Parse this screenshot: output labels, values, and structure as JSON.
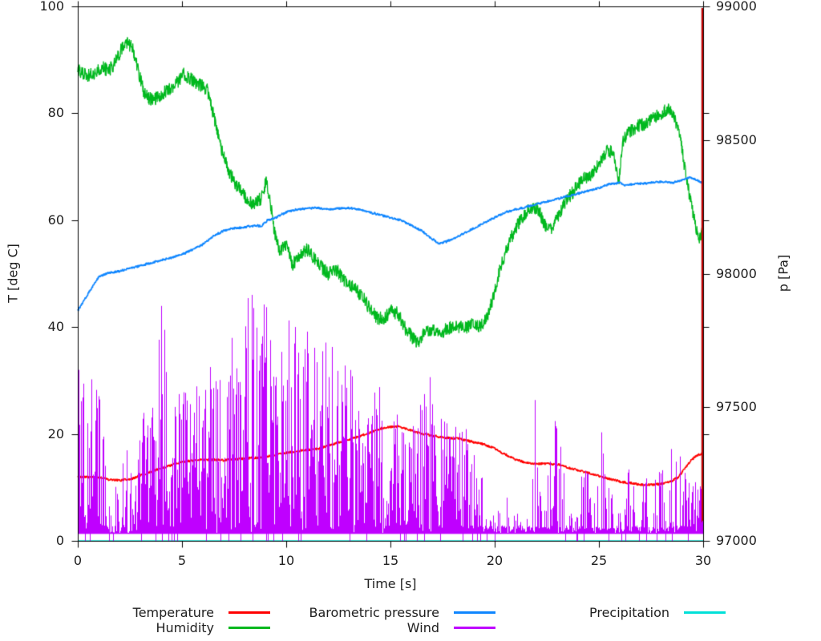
{
  "chart_data": {
    "type": "line",
    "title": "",
    "xlabel": "Time [s]",
    "ylabel": "T [deg C]",
    "y2label": "p [Pa]",
    "xlim": [
      0,
      30
    ],
    "ylim": [
      0,
      100
    ],
    "y2lim": [
      97000,
      99000
    ],
    "xticks": [
      0,
      5,
      10,
      15,
      20,
      25,
      30
    ],
    "yticks": [
      0,
      20,
      40,
      60,
      80,
      100
    ],
    "y2ticks": [
      97000,
      97500,
      98000,
      98500,
      99000
    ],
    "grid": false,
    "legend_position": "bottom",
    "axis_color": "#000000",
    "text_color": "#202020",
    "series": [
      {
        "name": "Temperature",
        "color": "#ff0000",
        "axis": "y1",
        "style": "line",
        "noise": 0.25,
        "width": 1.5,
        "points": [
          [
            0,
            12
          ],
          [
            1.3,
            11.8
          ],
          [
            1.5,
            11.4
          ],
          [
            2.0,
            11.3
          ],
          [
            2.6,
            11.6
          ],
          [
            3.2,
            12.5
          ],
          [
            4,
            13.6
          ],
          [
            5,
            14.8
          ],
          [
            6,
            15.2
          ],
          [
            7,
            15.1
          ],
          [
            8,
            15.4
          ],
          [
            9,
            15.7
          ],
          [
            9.7,
            16.3
          ],
          [
            10.5,
            16.8
          ],
          [
            11.5,
            17.2
          ],
          [
            12.5,
            18.4
          ],
          [
            13.5,
            19.5
          ],
          [
            14.1,
            20.4
          ],
          [
            14.7,
            21.2
          ],
          [
            15.3,
            21.4
          ],
          [
            15.9,
            20.8
          ],
          [
            16.4,
            20.1
          ],
          [
            17,
            19.7
          ],
          [
            17.6,
            19.3
          ],
          [
            18.3,
            19.1
          ],
          [
            19,
            18.5
          ],
          [
            19.6,
            17.9
          ],
          [
            20,
            17.3
          ],
          [
            20.4,
            16.4
          ],
          [
            21,
            15.2
          ],
          [
            21.5,
            14.6
          ],
          [
            22,
            14.4
          ],
          [
            22.6,
            14.5
          ],
          [
            23.2,
            14.2
          ],
          [
            23.6,
            13.6
          ],
          [
            24,
            13.2
          ],
          [
            24.6,
            12.6
          ],
          [
            25,
            12.1
          ],
          [
            25.6,
            11.5
          ],
          [
            26.1,
            11.0
          ],
          [
            26.6,
            10.8
          ],
          [
            27,
            10.5
          ],
          [
            27.6,
            10.5
          ],
          [
            28,
            10.7
          ],
          [
            28.4,
            11.0
          ],
          [
            28.8,
            11.9
          ],
          [
            29.1,
            13.4
          ],
          [
            29.4,
            15.0
          ],
          [
            29.7,
            16.0
          ],
          [
            30,
            16.4
          ]
        ]
      },
      {
        "name": "Humidity",
        "color": "#00b81e",
        "axis": "y1",
        "style": "line",
        "noise": 1.3,
        "width": 1.3,
        "points": [
          [
            0,
            88
          ],
          [
            0.4,
            87
          ],
          [
            0.8,
            87.5
          ],
          [
            1.2,
            88.5
          ],
          [
            1.5,
            88
          ],
          [
            1.8,
            89.5
          ],
          [
            2.1,
            92
          ],
          [
            2.35,
            93.2
          ],
          [
            2.6,
            92.5
          ],
          [
            2.9,
            88
          ],
          [
            3.2,
            83.5
          ],
          [
            3.6,
            82.3
          ],
          [
            4.0,
            83.5
          ],
          [
            4.4,
            84.5
          ],
          [
            4.8,
            86
          ],
          [
            5.1,
            87.3
          ],
          [
            5.4,
            86.5
          ],
          [
            5.8,
            85.5
          ],
          [
            6.2,
            84.5
          ],
          [
            6.5,
            80
          ],
          [
            6.9,
            73
          ],
          [
            7.2,
            69.5
          ],
          [
            7.6,
            66.5
          ],
          [
            8.0,
            64.5
          ],
          [
            8.4,
            63
          ],
          [
            8.8,
            64
          ],
          [
            9.05,
            67.5
          ],
          [
            9.25,
            63
          ],
          [
            9.45,
            57.5
          ],
          [
            9.7,
            54
          ],
          [
            10,
            55.5
          ],
          [
            10.3,
            51.5
          ],
          [
            10.6,
            53.5
          ],
          [
            11,
            54.5
          ],
          [
            11.5,
            52
          ],
          [
            12,
            50
          ],
          [
            12.4,
            50.8
          ],
          [
            12.8,
            48.5
          ],
          [
            13.2,
            47.5
          ],
          [
            13.6,
            46
          ],
          [
            14,
            43.5
          ],
          [
            14.35,
            41.8
          ],
          [
            14.7,
            41.5
          ],
          [
            15,
            43
          ],
          [
            15.35,
            42.6
          ],
          [
            15.7,
            39.8
          ],
          [
            16,
            38.3
          ],
          [
            16.3,
            36.8
          ],
          [
            16.6,
            38.8
          ],
          [
            17,
            39.6
          ],
          [
            17.4,
            39
          ],
          [
            17.8,
            39.8
          ],
          [
            18.2,
            40.2
          ],
          [
            18.6,
            39.8
          ],
          [
            19,
            40.6
          ],
          [
            19.3,
            40
          ],
          [
            19.6,
            41.5
          ],
          [
            19.9,
            45
          ],
          [
            20.2,
            50
          ],
          [
            20.6,
            55
          ],
          [
            21,
            58.5
          ],
          [
            21.4,
            61
          ],
          [
            21.8,
            62.5
          ],
          [
            22.1,
            62
          ],
          [
            22.4,
            59
          ],
          [
            22.7,
            58.2
          ],
          [
            23,
            60.5
          ],
          [
            23.4,
            63.5
          ],
          [
            23.8,
            65.5
          ],
          [
            24.2,
            67.5
          ],
          [
            24.6,
            68.5
          ],
          [
            25,
            70.5
          ],
          [
            25.4,
            73
          ],
          [
            25.7,
            72.5
          ],
          [
            25.95,
            67
          ],
          [
            26.15,
            74.5
          ],
          [
            26.4,
            76.5
          ],
          [
            26.8,
            77.5
          ],
          [
            27.2,
            78
          ],
          [
            27.6,
            79
          ],
          [
            28,
            80
          ],
          [
            28.3,
            80.8
          ],
          [
            28.6,
            79.5
          ],
          [
            28.9,
            75.5
          ],
          [
            29.2,
            67.5
          ],
          [
            29.5,
            61.5
          ],
          [
            29.8,
            55.8
          ],
          [
            30,
            58.5
          ]
        ]
      },
      {
        "name": "Barometric pressure",
        "color": "#0f86ff",
        "axis": "y2",
        "style": "line",
        "noise": 4.5,
        "width": 1.7,
        "points": [
          [
            0,
            97860
          ],
          [
            0.3,
            97900
          ],
          [
            0.7,
            97950
          ],
          [
            1.0,
            97988
          ],
          [
            1.4,
            98000
          ],
          [
            2,
            98010
          ],
          [
            2.5,
            98020
          ],
          [
            3,
            98030
          ],
          [
            3.5,
            98040
          ],
          [
            4,
            98050
          ],
          [
            4.5,
            98060
          ],
          [
            5,
            98072
          ],
          [
            5.5,
            98090
          ],
          [
            6,
            98110
          ],
          [
            6.5,
            98140
          ],
          [
            7,
            98160
          ],
          [
            7.5,
            98170
          ],
          [
            8,
            98174
          ],
          [
            8.5,
            98180
          ],
          [
            8.8,
            98178
          ],
          [
            9.1,
            98200
          ],
          [
            9.5,
            98210
          ],
          [
            10,
            98230
          ],
          [
            10.5,
            98240
          ],
          [
            11,
            98244
          ],
          [
            11.5,
            98246
          ],
          [
            12,
            98240
          ],
          [
            12.5,
            98244
          ],
          [
            13,
            98246
          ],
          [
            13.5,
            98240
          ],
          [
            14,
            98230
          ],
          [
            14.5,
            98220
          ],
          [
            15,
            98210
          ],
          [
            15.5,
            98200
          ],
          [
            16,
            98180
          ],
          [
            16.5,
            98160
          ],
          [
            17,
            98130
          ],
          [
            17.35,
            98112
          ],
          [
            17.7,
            98120
          ],
          [
            18,
            98130
          ],
          [
            18.5,
            98150
          ],
          [
            19,
            98170
          ],
          [
            19.5,
            98190
          ],
          [
            20,
            98210
          ],
          [
            20.5,
            98230
          ],
          [
            21,
            98240
          ],
          [
            21.5,
            98250
          ],
          [
            22,
            98260
          ],
          [
            22.5,
            98270
          ],
          [
            23,
            98280
          ],
          [
            23.5,
            98290
          ],
          [
            24,
            98300
          ],
          [
            24.5,
            98310
          ],
          [
            25,
            98320
          ],
          [
            25.5,
            98335
          ],
          [
            26,
            98340
          ],
          [
            26.3,
            98330
          ],
          [
            26.7,
            98336
          ],
          [
            27,
            98336
          ],
          [
            27.5,
            98340
          ],
          [
            28,
            98344
          ],
          [
            28.5,
            98340
          ],
          [
            29,
            98350
          ],
          [
            29.4,
            98360
          ],
          [
            29.7,
            98350
          ],
          [
            30,
            98340
          ]
        ]
      },
      {
        "name": "Wind",
        "color": "#bf00ff",
        "axis": "y1",
        "style": "impulses",
        "baseline": 2,
        "envelope": [
          [
            0,
            30
          ],
          [
            0.2,
            48
          ],
          [
            0.4,
            33
          ],
          [
            0.7,
            30
          ],
          [
            1.0,
            28
          ],
          [
            1.3,
            18
          ],
          [
            1.5,
            11
          ],
          [
            2.0,
            11
          ],
          [
            2.4,
            22
          ],
          [
            2.7,
            8
          ],
          [
            3.0,
            22
          ],
          [
            3.4,
            30
          ],
          [
            3.8,
            33
          ],
          [
            4.05,
            48
          ],
          [
            4.3,
            34
          ],
          [
            4.7,
            30
          ],
          [
            5.0,
            31
          ],
          [
            5.4,
            27
          ],
          [
            5.8,
            30
          ],
          [
            6.2,
            33
          ],
          [
            6.6,
            35
          ],
          [
            7.0,
            38
          ],
          [
            7.4,
            42
          ],
          [
            7.8,
            43
          ],
          [
            8.1,
            45
          ],
          [
            8.35,
            48
          ],
          [
            8.7,
            40
          ],
          [
            9.0,
            46
          ],
          [
            9.3,
            36
          ],
          [
            9.6,
            44
          ],
          [
            9.9,
            40
          ],
          [
            10.15,
            48
          ],
          [
            10.5,
            38
          ],
          [
            10.9,
            40
          ],
          [
            11.3,
            42
          ],
          [
            11.7,
            37
          ],
          [
            12.1,
            38
          ],
          [
            12.5,
            33
          ],
          [
            12.9,
            35
          ],
          [
            13.3,
            29
          ],
          [
            13.7,
            25
          ],
          [
            14.0,
            27
          ],
          [
            14.25,
            39
          ],
          [
            14.5,
            27
          ],
          [
            14.9,
            23
          ],
          [
            15.3,
            25
          ],
          [
            15.7,
            21
          ],
          [
            16.1,
            29
          ],
          [
            16.5,
            26
          ],
          [
            16.85,
            35
          ],
          [
            17.2,
            23
          ],
          [
            17.6,
            25
          ],
          [
            18.0,
            21
          ],
          [
            18.35,
            29
          ],
          [
            18.7,
            19
          ],
          [
            19.0,
            18
          ],
          [
            19.3,
            16
          ],
          [
            19.6,
            10
          ],
          [
            19.9,
            5
          ],
          [
            20.3,
            7
          ],
          [
            20.7,
            9
          ],
          [
            21.1,
            6
          ],
          [
            21.5,
            8
          ],
          [
            21.9,
            29
          ],
          [
            22.2,
            11
          ],
          [
            22.6,
            13
          ],
          [
            22.95,
            26
          ],
          [
            23.3,
            15
          ],
          [
            23.7,
            13
          ],
          [
            24.0,
            16
          ],
          [
            24.4,
            13
          ],
          [
            24.8,
            11
          ],
          [
            25.05,
            23
          ],
          [
            25.3,
            18
          ],
          [
            25.6,
            9
          ],
          [
            26.0,
            7
          ],
          [
            26.5,
            17
          ],
          [
            26.9,
            8
          ],
          [
            27.3,
            13
          ],
          [
            27.7,
            15
          ],
          [
            28.1,
            13
          ],
          [
            28.5,
            19
          ],
          [
            28.8,
            26
          ],
          [
            29.1,
            15
          ],
          [
            29.4,
            11
          ],
          [
            29.7,
            13
          ],
          [
            30,
            10
          ]
        ],
        "density": [
          [
            0,
            1.4,
            0.95
          ],
          [
            1.4,
            2.75,
            0.55
          ],
          [
            2.75,
            19.4,
            0.96
          ],
          [
            19.4,
            22.0,
            0.32
          ],
          [
            22.0,
            25.2,
            0.55
          ],
          [
            25.2,
            27.2,
            0.38
          ],
          [
            27.2,
            29.1,
            0.6
          ],
          [
            29.1,
            30.01,
            0.85
          ]
        ]
      },
      {
        "name": "Precipitation",
        "color": "#00e0d8",
        "axis": "y1",
        "style": "line",
        "noise": 0,
        "width": 1.3,
        "points": [
          [
            0,
            0
          ],
          [
            30,
            0
          ]
        ]
      }
    ],
    "markers": [
      {
        "type": "vline",
        "x": 30,
        "color": "#c00000",
        "y_from": 1.5,
        "y_to": 100,
        "width": 2.4
      }
    ]
  }
}
